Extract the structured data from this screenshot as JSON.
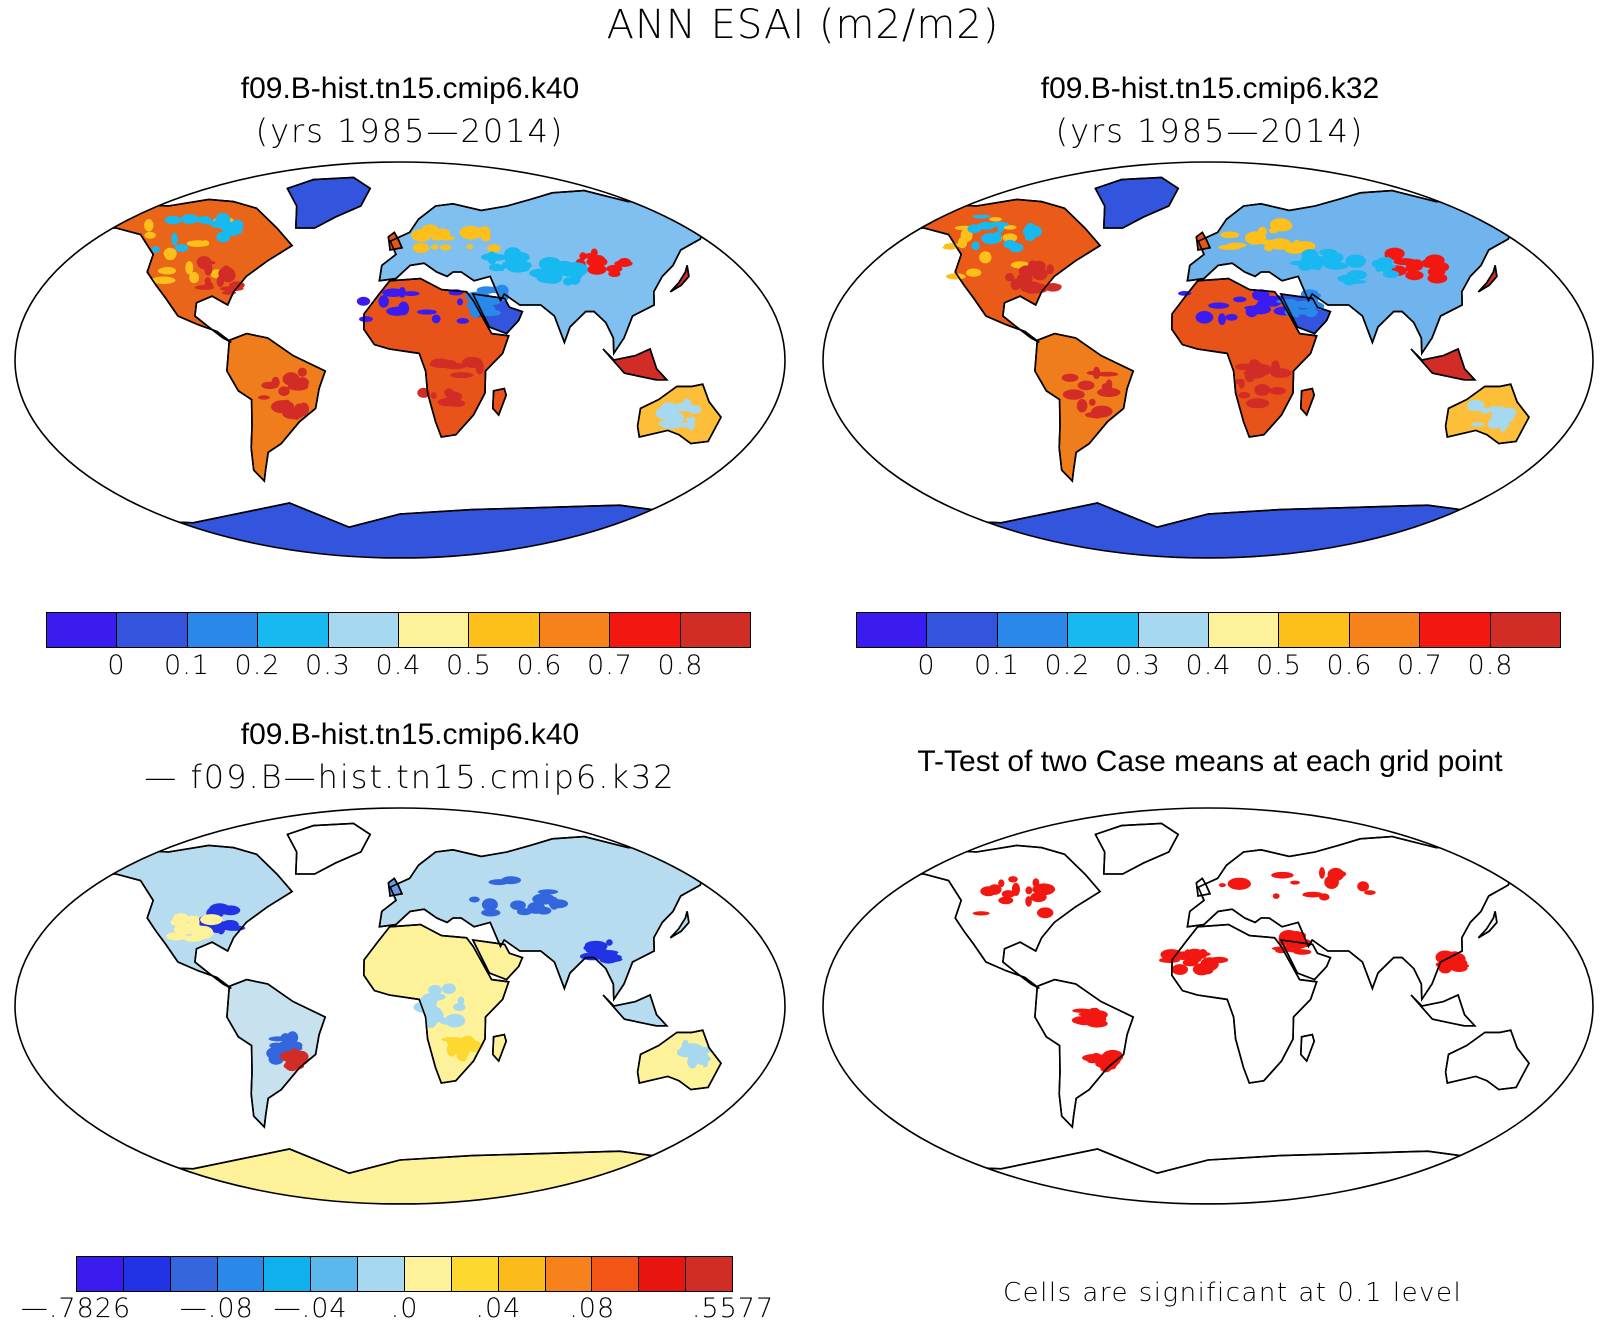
{
  "title": "ANN ESAI (m2/m2)",
  "panels": {
    "top_left": {
      "title_line1": "f09.B-hist.tn15.cmip6.k40",
      "title_line2": "(yrs 1985—2014)"
    },
    "top_right": {
      "title_line1": "f09.B-hist.tn15.cmip6.k32",
      "title_line2": "(yrs 1985—2014)"
    },
    "bottom_left": {
      "title_line1": "f09.B-hist.tn15.cmip6.k40",
      "title_line2": "— f09.B—hist.tn15.cmip6.k32"
    },
    "bottom_right": {
      "title_line1": "T-Test of two Case means at each grid point",
      "note": "Cells are significant at 0.1 level"
    }
  },
  "colorbars": {
    "abs": {
      "colors": [
        "#3b1cf0",
        "#3355dd",
        "#2a88e8",
        "#18b8f0",
        "#a6d8ef",
        "#fdf29a",
        "#fdbf1a",
        "#f7811a",
        "#f21811",
        "#d22c27"
      ],
      "labels": [
        "0",
        "0.1",
        "0.2",
        "0.3",
        "0.4",
        "0.5",
        "0.6",
        "0.7",
        "0.8"
      ]
    },
    "diff": {
      "colors": [
        "#3b1cf0",
        "#2233e6",
        "#3366dd",
        "#2a88e8",
        "#0fb0ee",
        "#5ab8ec",
        "#a6d8ef",
        "#fdf29a",
        "#fdd82e",
        "#fbbb1b",
        "#f7811a",
        "#f25516",
        "#e8150f",
        "#d22c27"
      ],
      "labels": [
        "—.7826",
        "—.08",
        "—.04",
        ".0",
        ".04",
        ".08",
        ".5577"
      ]
    }
  }
}
